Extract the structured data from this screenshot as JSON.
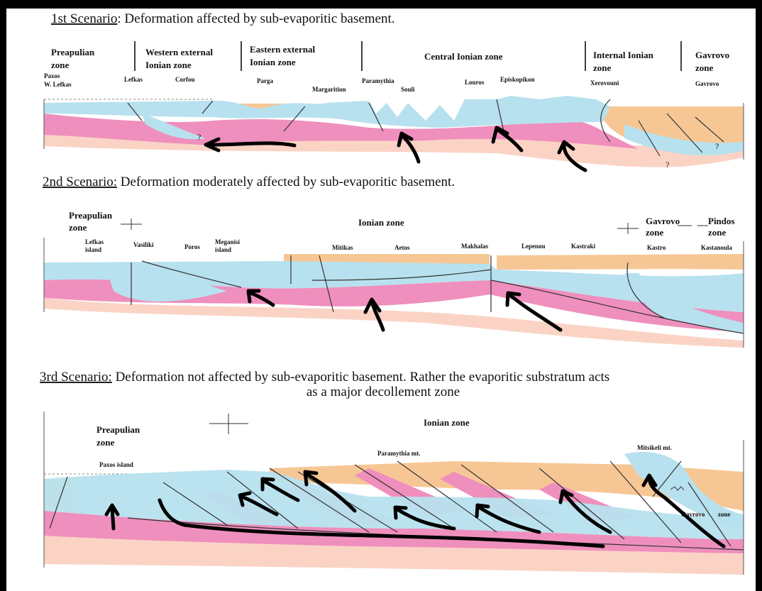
{
  "scenario_1": {
    "title_underlined": "1st Scenario",
    "title_rest": ": Deformation affected by sub-evaporitic basement.",
    "zones": [
      [
        "Preapulian",
        "zone"
      ],
      [
        "Western external",
        "Ionian zone"
      ],
      [
        "Eastern external",
        "Ionian zone"
      ],
      [
        "Central Ionian zone"
      ],
      [
        "Internal Ionian",
        "zone"
      ],
      [
        "Gavrovo",
        "zone"
      ]
    ],
    "localities": [
      "Paxos",
      "W. Lefkas",
      "Lefkas",
      "Corfou",
      "Parga",
      "Margarition",
      "Paramythia",
      "Souli",
      "Louros",
      "Episkopikon",
      "Xerovouni",
      "Gavrovo"
    ],
    "question_marks": [
      "?",
      "?",
      "?"
    ]
  },
  "scenario_2": {
    "title_underlined": "2nd Scenario:",
    "title_rest": " Deformation moderately affected by sub-evaporitic basement.",
    "zones": [
      [
        "Preapulian",
        "zone"
      ],
      [
        "Ionian zone"
      ],
      [
        "Gavrovo",
        "zone"
      ],
      [
        "Pindos",
        "zone"
      ]
    ],
    "localities": [
      [
        "Lefkas",
        "island"
      ],
      [
        "Vasiliki"
      ],
      [
        "Poros"
      ],
      [
        "Meganisi",
        "island"
      ],
      [
        "Mitikas"
      ],
      [
        "Aetos"
      ],
      [
        "Makhalas"
      ],
      [
        "Lepenou"
      ],
      [
        "Kastraki"
      ],
      [
        "Kastro"
      ],
      [
        "Kastanoula"
      ]
    ]
  },
  "scenario_3": {
    "title_underlined": "3rd Scenario:",
    "title_rest": " Deformation not affected by sub-evaporitic basement. Rather the evaporitic substratum acts",
    "title_line2": "as a major decollement zone",
    "zones": [
      [
        "Preapulian",
        "zone"
      ],
      [
        "Ionian zone"
      ]
    ],
    "localities": [
      "Paxos island",
      "Paramythia  mt.",
      "Mitsikeli mt.",
      "Gavrovo",
      "zone"
    ]
  }
}
